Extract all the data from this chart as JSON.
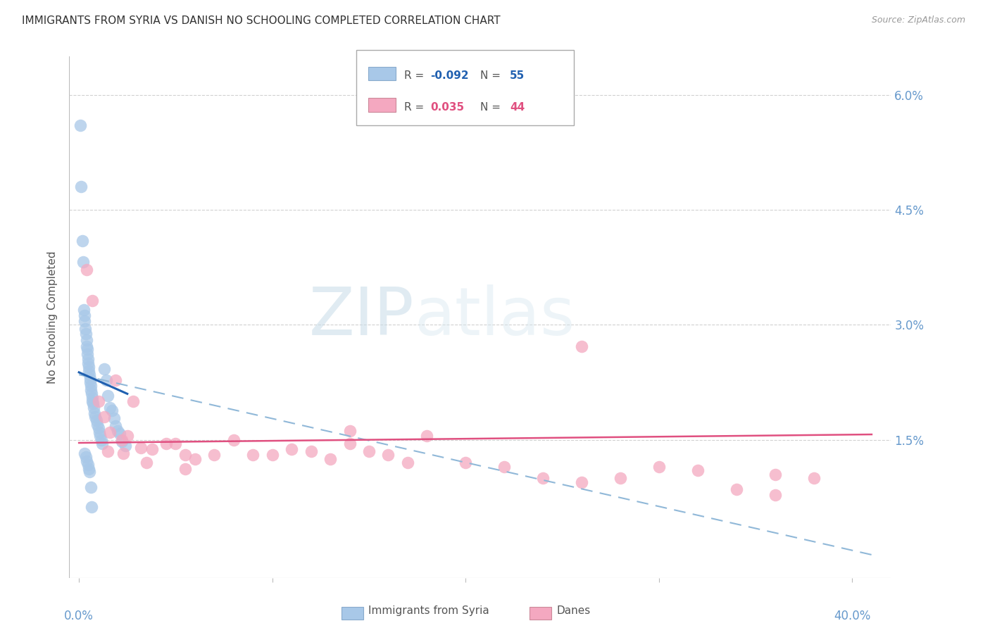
{
  "title": "IMMIGRANTS FROM SYRIA VS DANISH NO SCHOOLING COMPLETED CORRELATION CHART",
  "source": "Source: ZipAtlas.com",
  "ylabel": "No Schooling Completed",
  "y_tick_labels": [
    "6.0%",
    "4.5%",
    "3.0%",
    "1.5%"
  ],
  "y_tick_values": [
    6.0,
    4.5,
    3.0,
    1.5
  ],
  "ylim": [
    -0.3,
    6.5
  ],
  "xlim": [
    -0.5,
    42.0
  ],
  "syria_color": "#a8c8e8",
  "danes_color": "#f4a8c0",
  "syria_line_color": "#2060b0",
  "danes_line_color": "#e05080",
  "trend_dashed_color": "#90b8d8",
  "background_color": "#ffffff",
  "grid_color": "#cccccc",
  "title_color": "#333333",
  "axis_label_color": "#6699cc",
  "syria_x": [
    0.08,
    0.12,
    0.18,
    0.22,
    0.25,
    0.28,
    0.3,
    0.32,
    0.35,
    0.38,
    0.4,
    0.42,
    0.44,
    0.46,
    0.48,
    0.5,
    0.52,
    0.54,
    0.56,
    0.58,
    0.6,
    0.62,
    0.65,
    0.68,
    0.7,
    0.72,
    0.75,
    0.8,
    0.85,
    0.9,
    0.95,
    1.0,
    1.05,
    1.1,
    1.15,
    1.2,
    1.3,
    1.4,
    1.5,
    1.6,
    1.7,
    1.8,
    1.9,
    2.0,
    2.1,
    2.2,
    2.4,
    0.3,
    0.35,
    0.4,
    0.45,
    0.5,
    0.55,
    0.6,
    0.65
  ],
  "syria_y": [
    5.6,
    4.8,
    4.1,
    3.82,
    3.2,
    3.12,
    3.05,
    2.95,
    2.88,
    2.8,
    2.72,
    2.68,
    2.62,
    2.55,
    2.5,
    2.45,
    2.4,
    2.35,
    2.3,
    2.25,
    2.2,
    2.15,
    2.1,
    2.05,
    2.0,
    1.97,
    1.92,
    1.85,
    1.8,
    1.75,
    1.7,
    1.65,
    1.6,
    1.55,
    1.5,
    1.45,
    2.42,
    2.28,
    2.08,
    1.92,
    1.88,
    1.78,
    1.68,
    1.62,
    1.58,
    1.48,
    1.42,
    1.32,
    1.28,
    1.22,
    1.18,
    1.12,
    1.08,
    0.88,
    0.62
  ],
  "danes_x": [
    0.4,
    0.7,
    1.0,
    1.3,
    1.6,
    1.9,
    2.2,
    2.5,
    2.8,
    3.2,
    3.8,
    4.5,
    5.0,
    5.5,
    6.0,
    7.0,
    8.0,
    9.0,
    10.0,
    11.0,
    12.0,
    13.0,
    14.0,
    15.0,
    16.0,
    17.0,
    18.0,
    20.0,
    22.0,
    24.0,
    26.0,
    28.0,
    30.0,
    32.0,
    34.0,
    36.0,
    38.0,
    1.5,
    2.3,
    3.5,
    5.5,
    14.0,
    26.0,
    36.0
  ],
  "danes_y": [
    3.72,
    3.32,
    2.0,
    1.8,
    1.6,
    2.28,
    1.5,
    1.55,
    2.0,
    1.4,
    1.38,
    1.45,
    1.45,
    1.3,
    1.25,
    1.3,
    1.5,
    1.3,
    1.3,
    1.38,
    1.35,
    1.25,
    1.45,
    1.35,
    1.3,
    1.2,
    1.55,
    1.2,
    1.15,
    1.0,
    0.95,
    1.0,
    1.15,
    1.1,
    0.85,
    1.05,
    1.0,
    1.35,
    1.32,
    1.2,
    1.12,
    1.62,
    2.72,
    0.78
  ],
  "syria_trend_x": [
    0.0,
    2.5
  ],
  "syria_trend_y": [
    2.38,
    2.1
  ],
  "danes_trend_x": [
    0.0,
    41.0
  ],
  "danes_trend_y": [
    1.46,
    1.57
  ],
  "dashed_trend_x": [
    0.0,
    41.0
  ],
  "dashed_trend_y": [
    2.35,
    0.0
  ]
}
